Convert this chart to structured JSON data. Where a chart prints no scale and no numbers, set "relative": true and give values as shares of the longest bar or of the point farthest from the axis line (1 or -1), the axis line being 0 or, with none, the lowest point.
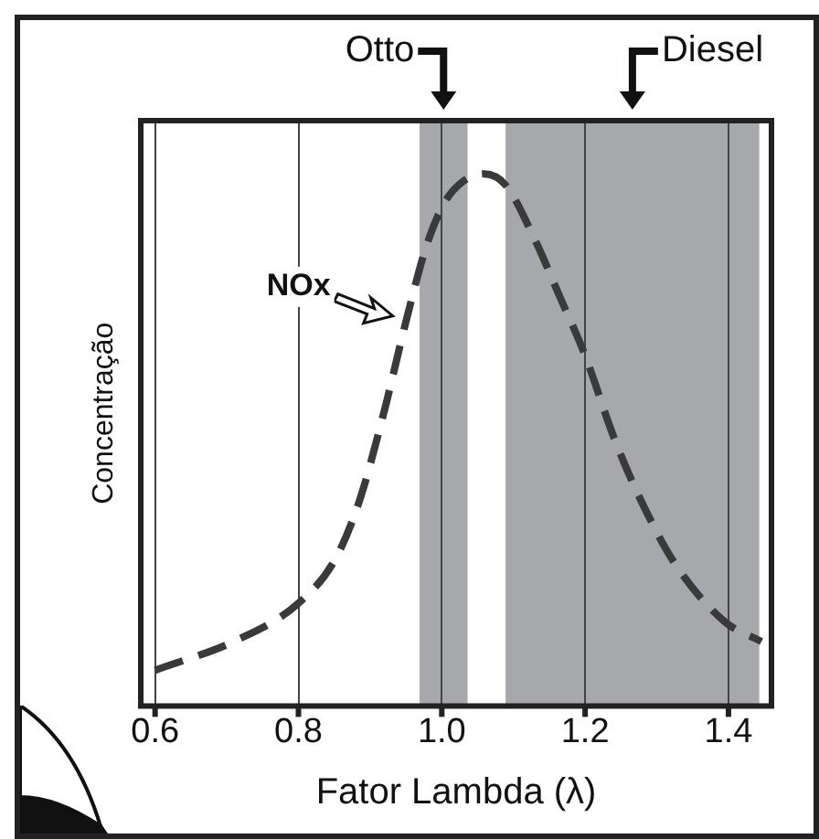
{
  "chart_data": {
    "type": "line",
    "relative": true,
    "xlabel": "Fator Lambda (λ)",
    "ylabel": "Concentração",
    "xlim": [
      0.58,
      1.46
    ],
    "xticks": [
      {
        "value": 0.6,
        "label": "0.6"
      },
      {
        "value": 0.8,
        "label": "0.8"
      },
      {
        "value": 1.0,
        "label": "1.0"
      },
      {
        "value": 1.2,
        "label": "1.2"
      },
      {
        "value": 1.4,
        "label": "1.4"
      }
    ],
    "grid": "x",
    "line_style": "dashed",
    "marker": "none",
    "bands": [
      {
        "axis": "x",
        "from": 0.969,
        "to": 1.036,
        "label": "Otto",
        "color": "#a7a8ab"
      },
      {
        "axis": "x",
        "from": 1.089,
        "to": 1.443,
        "label": "Diesel",
        "color": "#a7a8ab"
      }
    ],
    "series": [
      {
        "name": "NOx",
        "color": "#3a3a3a",
        "x": [
          0.6,
          0.713,
          0.8,
          0.851,
          0.884,
          0.918,
          0.952,
          0.978,
          1.003,
          1.029,
          1.059,
          1.089,
          1.131,
          1.165,
          1.199,
          1.242,
          1.284,
          1.327,
          1.395,
          1.446
        ],
        "values": [
          0.067,
          0.123,
          0.193,
          0.275,
          0.381,
          0.545,
          0.733,
          0.862,
          0.944,
          0.985,
          1,
          0.979,
          0.873,
          0.768,
          0.662,
          0.498,
          0.369,
          0.264,
          0.158,
          0.121
        ]
      }
    ]
  }
}
